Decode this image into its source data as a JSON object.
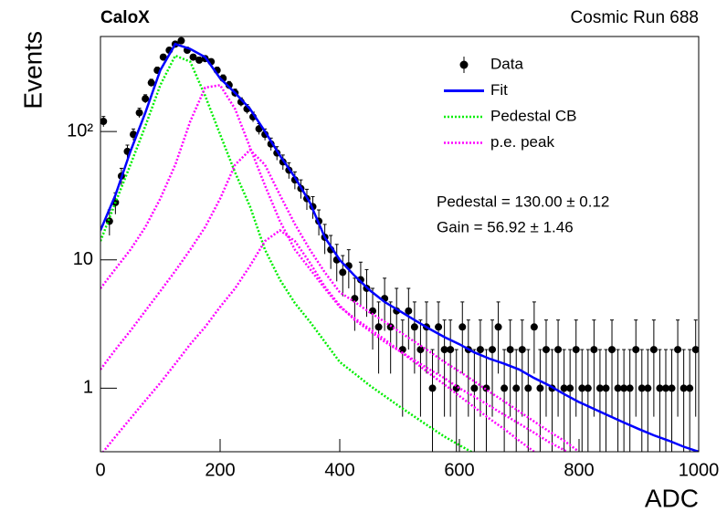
{
  "chart_data": {
    "type": "line",
    "title": "CaloX",
    "subtitle": "Cosmic Run 688",
    "x_label": "ADC",
    "y_label": "Events",
    "annotations": [
      "Pedestal = 130.00 ± 0.12",
      "Gain = 56.92 ± 1.46"
    ],
    "log_y": true,
    "legend": "upper right",
    "xlim": [
      0,
      1000
    ],
    "xticks": [
      0,
      200,
      400,
      600,
      800,
      1000
    ],
    "ylim": [
      0.32,
      550
    ],
    "yticks": [
      1,
      10,
      {
        "value": 100,
        "label": "10²"
      }
    ],
    "x": [
      0,
      25,
      50,
      75,
      100,
      125,
      150,
      175,
      200,
      225,
      250,
      275,
      300,
      325,
      350,
      375,
      400,
      425,
      450,
      475,
      500,
      525,
      550,
      575,
      600,
      625,
      650,
      675,
      700,
      725,
      750,
      775,
      800,
      825,
      850,
      875,
      900,
      925,
      950,
      975,
      1000
    ],
    "series": [
      {
        "name": "Data",
        "color": "#000000",
        "style": "points",
        "x": [
          5,
          15,
          25,
          35,
          45,
          55,
          65,
          75,
          85,
          95,
          105,
          115,
          125,
          135,
          145,
          155,
          165,
          175,
          185,
          195,
          205,
          215,
          225,
          235,
          245,
          255,
          265,
          275,
          285,
          295,
          305,
          315,
          325,
          335,
          345,
          355,
          365,
          375,
          385,
          395,
          405,
          415,
          425,
          435,
          445,
          455,
          465,
          475,
          485,
          495,
          505,
          515,
          525,
          535,
          545,
          555,
          565,
          575,
          585,
          595,
          605,
          615,
          625,
          635,
          645,
          655,
          665,
          675,
          685,
          695,
          705,
          715,
          725,
          735,
          745,
          755,
          765,
          775,
          785,
          795,
          805,
          815,
          825,
          835,
          845,
          855,
          865,
          875,
          885,
          895,
          905,
          915,
          925,
          935,
          945,
          955,
          965,
          975,
          985,
          995
        ],
        "values": [
          120,
          20,
          28,
          45,
          70,
          95,
          140,
          180,
          240,
          300,
          380,
          430,
          480,
          510,
          430,
          380,
          360,
          370,
          350,
          300,
          260,
          230,
          200,
          170,
          150,
          130,
          105,
          95,
          80,
          68,
          58,
          50,
          42,
          36,
          30,
          26,
          20,
          15,
          12,
          10,
          8,
          9,
          5,
          7,
          6,
          4,
          3,
          5,
          3,
          4,
          2,
          4,
          3,
          2,
          3,
          1,
          3,
          2,
          2,
          1,
          3,
          2,
          1,
          2,
          1,
          2,
          3,
          1,
          2,
          1,
          2,
          1,
          3,
          1,
          2,
          1,
          2,
          1,
          1,
          2,
          1,
          1,
          2,
          1,
          1,
          2,
          1,
          1,
          1,
          2,
          1,
          1,
          2,
          1,
          1,
          1,
          2,
          1,
          1,
          2
        ],
        "errors": [
          11,
          4.5,
          5.3,
          6.7,
          8.4,
          9.7,
          11.8,
          13.4,
          15.5,
          17.3,
          19.5,
          20.7,
          21.9,
          22.6,
          20.7,
          19.5,
          19,
          19.2,
          18.7,
          17.3,
          16.1,
          15.2,
          14.1,
          13,
          12.2,
          11.4,
          10.2,
          9.7,
          8.9,
          8.2,
          7.6,
          7.1,
          6.5,
          6,
          5.5,
          5.1,
          4.5,
          3.9,
          3.5,
          3.2,
          2.8,
          3,
          2.2,
          2.6,
          2.4,
          2,
          1.7,
          2.2,
          1.7,
          2,
          1.4,
          2,
          1.7,
          1.4,
          1.7,
          1,
          1.7,
          1.4,
          1.4,
          1,
          1.7,
          1.4,
          1,
          1.4,
          1,
          1.4,
          1.7,
          1,
          1.4,
          1,
          1.4,
          1,
          1.7,
          1,
          1.4,
          1,
          1.4,
          1,
          1,
          1.4,
          1,
          1,
          1.4,
          1,
          1,
          1.4,
          1,
          1,
          1,
          1.4,
          1,
          1,
          1.4,
          1,
          1,
          1,
          1.4,
          1,
          1,
          1.4
        ]
      },
      {
        "name": "Fit",
        "color": "#0000ff",
        "style": "line",
        "values": [
          17,
          32,
          70,
          140,
          300,
          480,
          440,
          380,
          260,
          200,
          150,
          100,
          65,
          44,
          28,
          15,
          10,
          7.5,
          5.8,
          4.7,
          4.0,
          3.4,
          2.9,
          2.5,
          2.2,
          1.9,
          1.7,
          1.55,
          1.4,
          1.2,
          1.05,
          0.9,
          0.78,
          0.69,
          0.61,
          0.54,
          0.48,
          0.43,
          0.39,
          0.35,
          0.32
        ]
      },
      {
        "name": "Pedestal CB",
        "color": "#00ee00",
        "style": "dotted",
        "values": [
          14,
          28,
          55,
          110,
          230,
          390,
          350,
          190,
          95,
          48,
          26,
          12,
          7,
          4.6,
          3.3,
          2.3,
          1.6,
          1.3,
          1.05,
          0.87,
          0.72,
          0.6,
          0.5,
          0.42,
          0.36,
          0.31,
          null,
          null,
          null,
          null,
          null,
          null,
          null,
          null,
          null,
          null,
          null,
          null,
          null,
          null,
          null
        ]
      },
      {
        "name": "p.e. peak",
        "color": "#ff00ff",
        "style": "dotted",
        "components": [
          [
            6,
            8.5,
            12,
            18,
            30,
            55,
            120,
            220,
            230,
            150,
            75,
            38,
            20,
            12,
            8.5,
            6,
            4.3,
            3.5,
            2.9,
            2.4,
            1.95,
            1.6,
            1.3,
            1.07,
            0.87,
            0.71,
            0.58,
            0.48,
            0.39,
            0.32,
            null,
            null,
            null,
            null,
            null,
            null,
            null,
            null,
            null,
            null,
            null
          ],
          [
            1.4,
            2.0,
            2.8,
            4.0,
            5.7,
            8.2,
            12,
            18,
            30,
            55,
            72,
            55,
            32,
            19,
            12,
            8,
            5.6,
            4.7,
            3.9,
            3.3,
            2.75,
            2.3,
            1.93,
            1.6,
            1.35,
            1.13,
            0.94,
            0.79,
            0.66,
            0.55,
            0.46,
            0.39,
            0.32,
            null,
            null,
            null,
            null,
            null,
            null,
            null,
            null
          ],
          [
            0.3,
            0.42,
            0.58,
            0.8,
            1.1,
            1.55,
            2.2,
            3.0,
            4.3,
            6.0,
            9,
            14,
            17,
            14,
            9.5,
            6.2,
            4.4,
            3.4,
            2.8,
            2.3,
            1.95,
            1.65,
            1.4,
            1.2,
            1.0,
            0.86,
            0.73,
            0.62,
            0.53,
            0.45,
            0.38,
            0.33,
            0.28,
            null,
            null,
            null,
            null,
            null,
            null,
            null,
            null
          ]
        ]
      }
    ]
  }
}
